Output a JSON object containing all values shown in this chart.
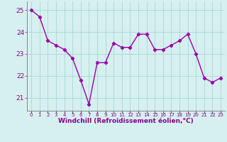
{
  "x": [
    0,
    1,
    2,
    3,
    4,
    5,
    6,
    7,
    8,
    9,
    10,
    11,
    12,
    13,
    14,
    15,
    16,
    17,
    18,
    19,
    20,
    21,
    22,
    23
  ],
  "y": [
    25.0,
    24.7,
    23.6,
    23.4,
    23.2,
    22.8,
    21.8,
    20.7,
    22.6,
    22.6,
    23.5,
    23.3,
    23.3,
    23.9,
    23.9,
    23.2,
    23.2,
    23.4,
    23.6,
    23.9,
    23.0,
    21.9,
    21.7,
    21.9
  ],
  "line_color": "#9900aa",
  "marker": "D",
  "markersize": 2.2,
  "linewidth": 1.0,
  "bg_color": "#d6f0f0",
  "grid_color": "#afd8d8",
  "xlabel": "Windchill (Refroidissement éolien,°C)",
  "xlabel_fontsize": 6.5,
  "ylim": [
    20.4,
    25.4
  ],
  "yticks": [
    21,
    22,
    23,
    24,
    25
  ],
  "ytick_fontsize": 6.5,
  "xtick_fontsize": 5.0,
  "tick_color": "#880088"
}
